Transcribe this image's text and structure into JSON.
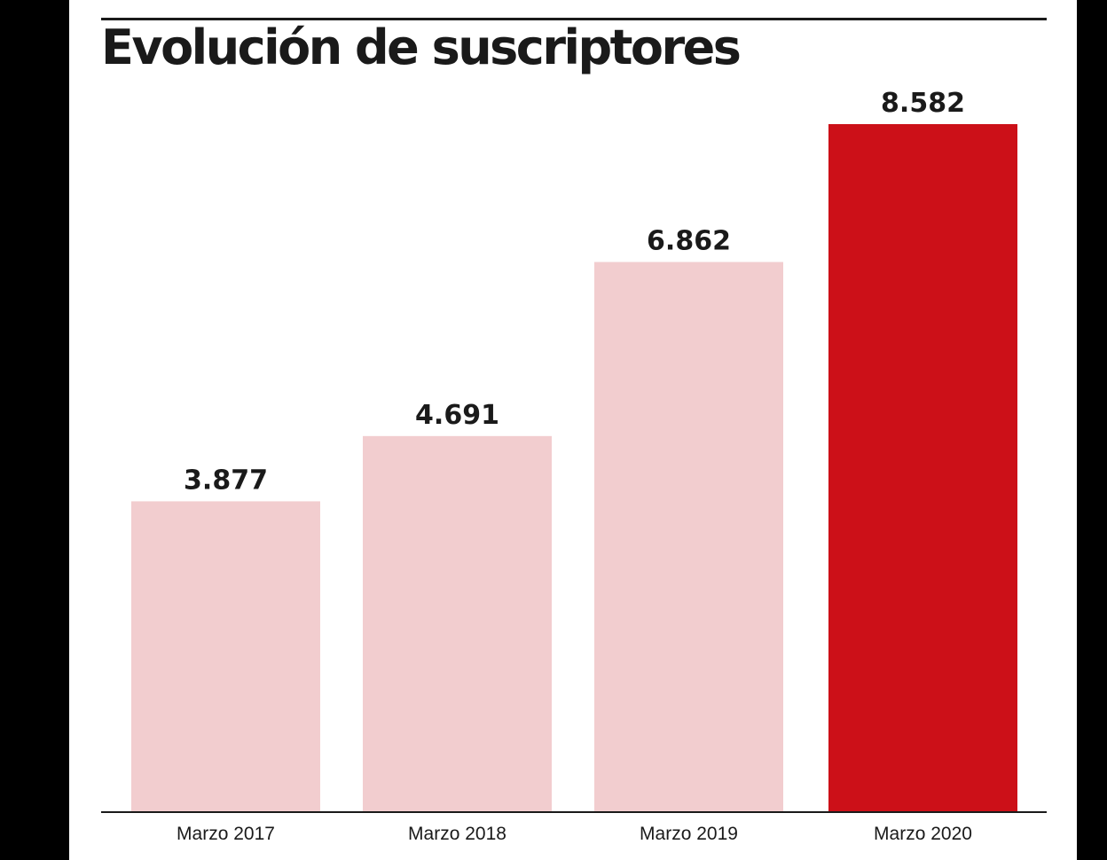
{
  "chart_data": {
    "type": "bar",
    "title": "Evolución de suscriptores",
    "categories": [
      "Marzo 2017",
      "Marzo 2018",
      "Marzo 2019",
      "Marzo 2020"
    ],
    "values": [
      3877,
      4691,
      6862,
      8582
    ],
    "value_labels": [
      "3.877",
      "4.691",
      "6.862",
      "8.582"
    ],
    "ylim": [
      0,
      9500
    ],
    "grid": false,
    "legend": "none",
    "colors": {
      "bar": "#f2cdcf",
      "highlight": "#cc1018",
      "text": "#1a1a1a",
      "axis": "#1a1a1a"
    },
    "highlight_index": 3
  }
}
